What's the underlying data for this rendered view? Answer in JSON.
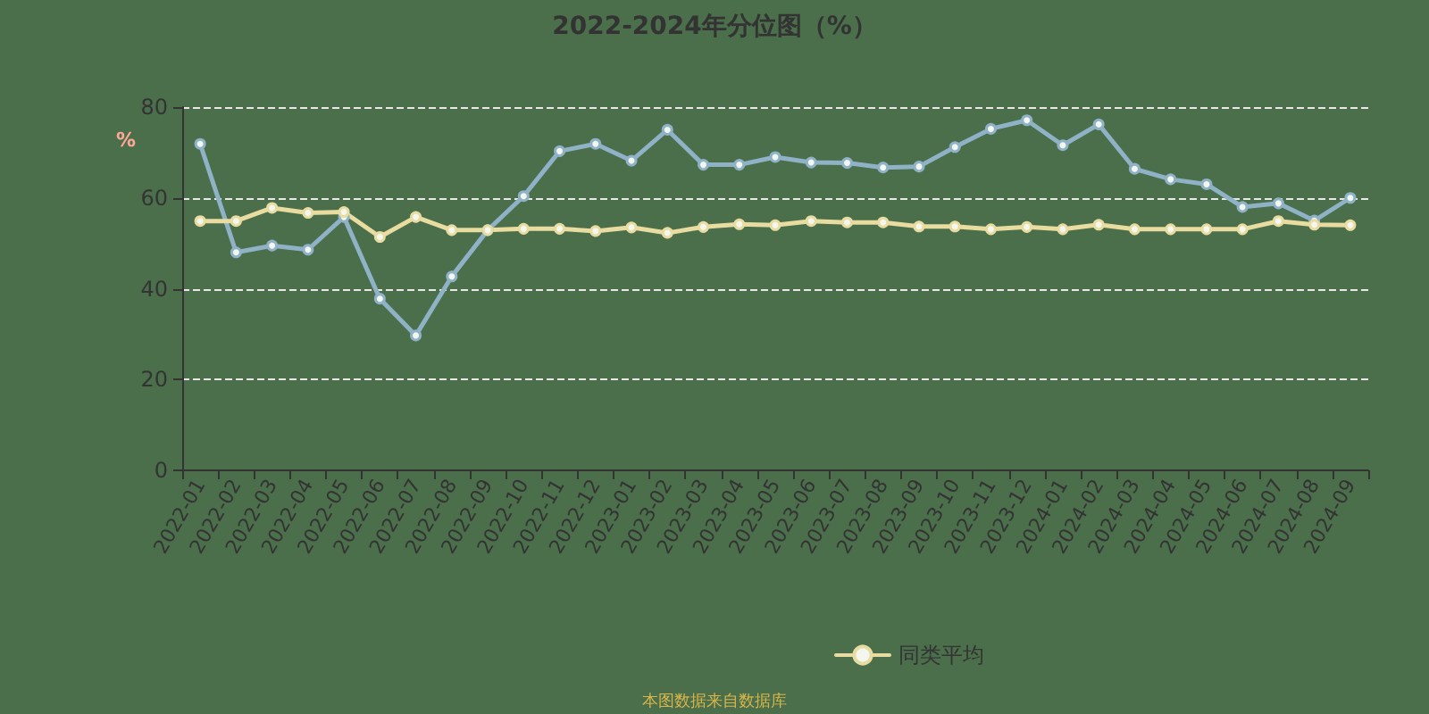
{
  "chart_data": {
    "type": "line",
    "title": "2022-2024年分位图（%）",
    "ylabel": "%",
    "categories": [
      "2022-01",
      "2022-02",
      "2022-03",
      "2022-04",
      "2022-05",
      "2022-06",
      "2022-07",
      "2022-08",
      "2022-09",
      "2022-10",
      "2022-11",
      "2022-12",
      "2023-01",
      "2023-02",
      "2023-03",
      "2023-04",
      "2023-05",
      "2023-06",
      "2023-07",
      "2023-08",
      "2023-09",
      "2023-10",
      "2023-11",
      "2023-12",
      "2024-01",
      "2024-02",
      "2024-03",
      "2024-04",
      "2024-05",
      "2024-06",
      "2024-07",
      "2024-08",
      "2024-09"
    ],
    "series": [
      {
        "color": "#8fb2c7",
        "values": [
          71.9,
          48.0,
          49.5,
          48.6,
          55.8,
          37.8,
          29.7,
          42.7,
          52.9,
          60.4,
          70.3,
          71.9,
          68.2,
          75.0,
          67.3,
          67.3,
          69.0,
          67.8,
          67.7,
          66.7,
          66.9,
          71.2,
          75.2,
          77.1,
          71.6,
          76.2,
          66.4,
          64.1,
          63.0,
          58.0,
          58.8,
          55.0,
          60.0
        ]
      },
      {
        "name": "同类平均",
        "color": "#e8dca0",
        "values": [
          54.9,
          54.9,
          57.8,
          56.7,
          56.9,
          51.4,
          55.8,
          52.9,
          52.9,
          53.2,
          53.2,
          52.7,
          53.5,
          52.3,
          53.6,
          54.2,
          54.0,
          54.9,
          54.6,
          54.6,
          53.7,
          53.7,
          53.1,
          53.6,
          53.1,
          54.1,
          53.1,
          53.1,
          53.1,
          53.1,
          54.9,
          54.1,
          54.0
        ]
      }
    ],
    "ylim": [
      0,
      80
    ],
    "yticks": [
      0,
      20,
      40,
      60,
      80
    ],
    "grid": "y",
    "legend": "bottom",
    "marker": "circle",
    "line_style": "solid",
    "annotations": [
      "本图数据来自数据库"
    ]
  }
}
